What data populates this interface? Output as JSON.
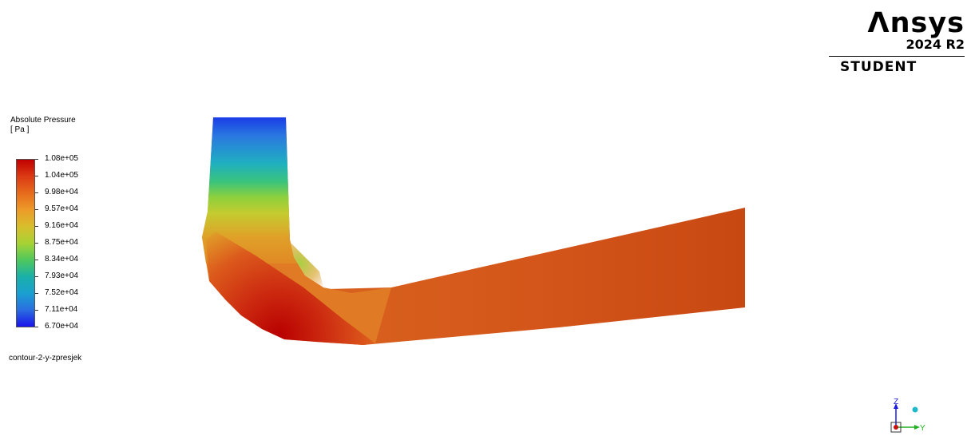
{
  "legend": {
    "title": "Absolute Pressure",
    "unit": "[ Pa ]",
    "ticks": [
      "1.08e+05",
      "1.04e+05",
      "9.98e+04",
      "9.57e+04",
      "9.16e+04",
      "8.75e+04",
      "8.34e+04",
      "7.93e+04",
      "7.52e+04",
      "7.11e+04",
      "6.70e+04"
    ],
    "colors": {
      "max": "#c00000",
      "mid": "#a8d234",
      "min": "#1a14ea"
    }
  },
  "contour_name": "contour-2-y-zpresjek",
  "logo": {
    "brand": "Λnsys",
    "version": "2024 R2",
    "edition": "STUDENT"
  },
  "triad": {
    "x_label": "Z",
    "y_label": "Y"
  }
}
